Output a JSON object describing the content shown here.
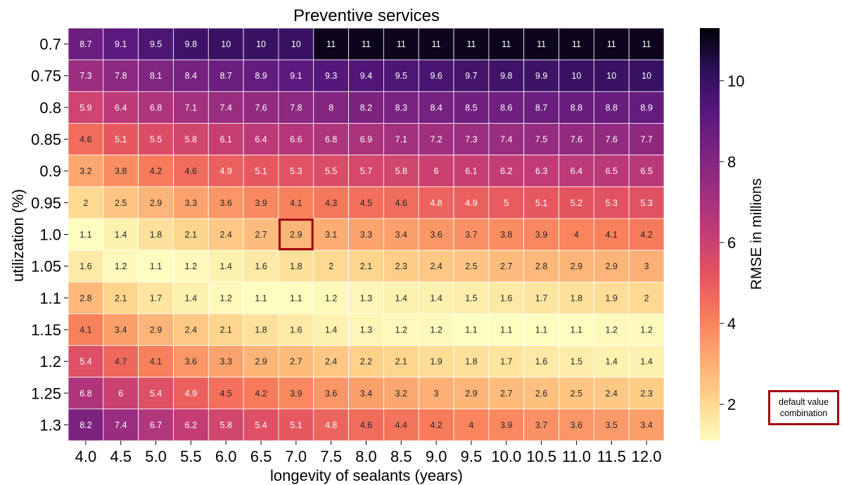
{
  "chart_data": {
    "type": "heatmap",
    "title": "Preventive services",
    "xlabel": "longevity of sealants (years)",
    "ylabel": "utilization (%)",
    "x_categories": [
      "4.0",
      "4.5",
      "5.0",
      "5.5",
      "6.0",
      "6.5",
      "7.0",
      "7.5",
      "8.0",
      "8.5",
      "9.0",
      "9.5",
      "10.0",
      "10.5",
      "11.0",
      "11.5",
      "12.0"
    ],
    "y_categories": [
      "0.7",
      "0.75",
      "0.8",
      "0.85",
      "0.9",
      "0.95",
      "1.0",
      "1.05",
      "1.1",
      "1.15",
      "1.2",
      "1.25",
      "1.3"
    ],
    "values": [
      [
        8.7,
        9.1,
        9.5,
        9.8,
        10,
        10,
        10,
        11,
        11,
        11,
        11,
        11,
        11,
        11,
        11,
        11,
        11
      ],
      [
        7.3,
        7.8,
        8.1,
        8.4,
        8.7,
        8.9,
        9.1,
        9.3,
        9.4,
        9.5,
        9.6,
        9.7,
        9.8,
        9.9,
        10,
        10,
        10
      ],
      [
        5.9,
        6.4,
        6.8,
        7.1,
        7.4,
        7.6,
        7.8,
        8,
        8.2,
        8.3,
        8.4,
        8.5,
        8.6,
        8.7,
        8.8,
        8.8,
        8.9
      ],
      [
        4.6,
        5.1,
        5.5,
        5.8,
        6.1,
        6.4,
        6.6,
        6.8,
        6.9,
        7.1,
        7.2,
        7.3,
        7.4,
        7.5,
        7.6,
        7.6,
        7.7
      ],
      [
        3.2,
        3.8,
        4.2,
        4.6,
        4.9,
        5.1,
        5.3,
        5.5,
        5.7,
        5.8,
        6,
        6.1,
        6.2,
        6.3,
        6.4,
        6.5,
        6.5
      ],
      [
        2,
        2.5,
        2.9,
        3.3,
        3.6,
        3.9,
        4.1,
        4.3,
        4.5,
        4.6,
        4.8,
        4.9,
        5,
        5.1,
        5.2,
        5.3,
        5.3
      ],
      [
        1.1,
        1.4,
        1.8,
        2.1,
        2.4,
        2.7,
        2.9,
        3.1,
        3.3,
        3.4,
        3.6,
        3.7,
        3.8,
        3.9,
        4,
        4.1,
        4.2
      ],
      [
        1.6,
        1.2,
        1.1,
        1.2,
        1.4,
        1.6,
        1.8,
        2,
        2.1,
        2.3,
        2.4,
        2.5,
        2.7,
        2.8,
        2.9,
        2.9,
        3
      ],
      [
        2.8,
        2.1,
        1.7,
        1.4,
        1.2,
        1.1,
        1.1,
        1.2,
        1.3,
        1.4,
        1.4,
        1.5,
        1.6,
        1.7,
        1.8,
        1.9,
        2
      ],
      [
        4.1,
        3.4,
        2.9,
        2.4,
        2.1,
        1.8,
        1.6,
        1.4,
        1.3,
        1.2,
        1.2,
        1.1,
        1.1,
        1.1,
        1.1,
        1.2,
        1.2
      ],
      [
        5.4,
        4.7,
        4.1,
        3.6,
        3.3,
        2.9,
        2.7,
        2.4,
        2.2,
        2.1,
        1.9,
        1.8,
        1.7,
        1.6,
        1.5,
        1.4,
        1.4
      ],
      [
        6.8,
        6,
        5.4,
        4.9,
        4.5,
        4.2,
        3.9,
        3.6,
        3.4,
        3.2,
        3,
        2.9,
        2.7,
        2.6,
        2.5,
        2.4,
        2.3
      ],
      [
        8.2,
        7.4,
        6.7,
        6.2,
        5.8,
        5.4,
        5.1,
        4.8,
        4.6,
        4.4,
        4.2,
        4,
        3.9,
        3.7,
        3.6,
        3.5,
        3.4
      ]
    ],
    "colormap": "magma_r",
    "color_range": [
      1.1,
      11.3
    ],
    "colorbar": {
      "label": "RMSE in millions",
      "ticks": [
        2,
        4,
        6,
        8,
        10
      ]
    },
    "highlight": {
      "row": "1.0",
      "col": "7.0",
      "color": "#a50000"
    },
    "legend": {
      "label": "default value combination",
      "placement": "bottom-right"
    }
  }
}
